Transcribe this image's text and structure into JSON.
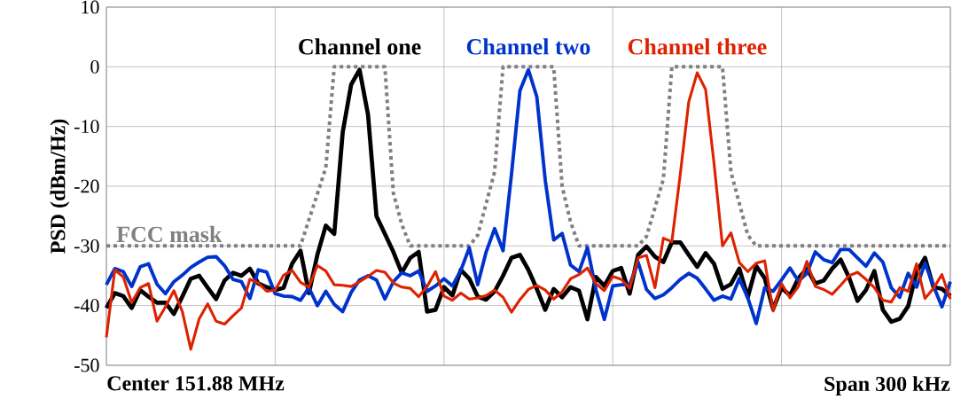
{
  "chart_data": {
    "type": "line",
    "ylabel": "PSD (dBm/Hz)",
    "ylim": [
      -50,
      10
    ],
    "yticks": [
      -50,
      -40,
      -30,
      -20,
      -10,
      0,
      10
    ],
    "tick_labels": "y",
    "grid": true,
    "annotations": [
      "Center 151.88 MHz",
      "Span 300 kHz"
    ],
    "categories": [
      null,
      null,
      null,
      null,
      null,
      null,
      null,
      null,
      null,
      null,
      null,
      null,
      null,
      null,
      null,
      null,
      null,
      null,
      null,
      null,
      null,
      null,
      null,
      null,
      null,
      null,
      null,
      null,
      null,
      null,
      null,
      null,
      null,
      null,
      null,
      null,
      null,
      null,
      null,
      null,
      null,
      null,
      null,
      null,
      null,
      null,
      null,
      null,
      null,
      null,
      null,
      null,
      null,
      null,
      null,
      null,
      null,
      null,
      null,
      null,
      null,
      null,
      null,
      null,
      null,
      null,
      null,
      null,
      null,
      null,
      null,
      null,
      null,
      null,
      null,
      null,
      null,
      null,
      null,
      null,
      null,
      null,
      null,
      null,
      null,
      null,
      null,
      null,
      null,
      null,
      null,
      null,
      null,
      null,
      null,
      null,
      null,
      null,
      null,
      null,
      null
    ],
    "series": [
      {
        "name": "FCC mask",
        "color": "#808080",
        "line_style": "dotted",
        "values": [
          -30,
          -30,
          -30,
          -30,
          -30,
          -30,
          -30,
          -30,
          -30,
          -30,
          -30,
          -30,
          -30,
          -30,
          -30,
          -30,
          -30,
          -30,
          -30,
          -30,
          -30,
          -30,
          -30,
          -30,
          -25.6,
          -21.3,
          -16.9,
          0,
          0,
          0,
          0,
          0,
          0,
          0,
          -21.1,
          -26.4,
          -30,
          -30,
          -30,
          -30,
          -30,
          -30,
          -30,
          -30,
          -28.2,
          -22.9,
          -17.6,
          0,
          0,
          0,
          0,
          0,
          0,
          0,
          -20,
          -26,
          -30,
          -30,
          -30,
          -30,
          -30,
          -30,
          -30,
          -30,
          -28.4,
          -23.6,
          -18.8,
          0,
          0,
          0,
          0,
          0,
          0,
          0,
          -17.6,
          -22.9,
          -28.2,
          -30,
          -30,
          -30,
          -30,
          -30,
          -30,
          -30,
          -30,
          -30,
          -30,
          -30,
          -30,
          -30,
          -30,
          -30,
          -30,
          -30,
          -30,
          -30,
          -30,
          -30,
          -30,
          -30,
          -30
        ]
      },
      {
        "name": "Channel one",
        "color": "#000000",
        "values": [
          -40.4,
          -37.9,
          -38.4,
          -40.4,
          -37.4,
          -38.5,
          -39.5,
          -39.5,
          -41.4,
          -38.5,
          -35.5,
          -35,
          -37,
          -38.9,
          -35.8,
          -34.5,
          -35,
          -33.8,
          -36.3,
          -36.9,
          -37.4,
          -37,
          -33,
          -30.8,
          -37.9,
          -31.5,
          -26.6,
          -28,
          -11,
          -3,
          -0.5,
          -8,
          -25,
          -28,
          -31,
          -34.5,
          -32,
          -31,
          -41,
          -40.7,
          -36.9,
          -38.3,
          -34,
          -35.5,
          -38.5,
          -39,
          -37.6,
          -35,
          -32,
          -31.5,
          -34,
          -37.2,
          -40.7,
          -37.2,
          -38.6,
          -36.9,
          -37.5,
          -42.3,
          -35.2,
          -36.7,
          -34.2,
          -33.7,
          -38,
          -31.5,
          -30.1,
          -31.8,
          -32.7,
          -29.4,
          -29.4,
          -31.5,
          -33.5,
          -31.2,
          -33,
          -37.2,
          -36.4,
          -33.8,
          -38.6,
          -33.4,
          -35.4,
          -40.6,
          -37,
          -38.3,
          -35.4,
          -33.8,
          -36.3,
          -35.8,
          -33.8,
          -32.3,
          -35.3,
          -39.2,
          -37.4,
          -34.2,
          -40.7,
          -42.7,
          -42.2,
          -40.1,
          -34.4,
          -32,
          -36.9,
          -37.2,
          -38.4
        ]
      },
      {
        "name": "Channel two",
        "color": "#0033cc",
        "values": [
          -36.5,
          -33.8,
          -34.3,
          -36.8,
          -33.5,
          -33,
          -36.4,
          -38,
          -36,
          -34.9,
          -33.6,
          -32.7,
          -31.9,
          -31.8,
          -33.3,
          -35.6,
          -36,
          -38.8,
          -34,
          -34.4,
          -38,
          -38.4,
          -38.5,
          -39.1,
          -37,
          -40,
          -37.6,
          -39.8,
          -41,
          -37.8,
          -35.7,
          -35,
          -35.7,
          -38.9,
          -36,
          -34.5,
          -35,
          -34.2,
          -37.6,
          -36.7,
          -35.5,
          -36.7,
          -34.1,
          -30.3,
          -36.5,
          -31,
          -27.1,
          -30.8,
          -18,
          -4,
          -0.5,
          -5,
          -19,
          -29,
          -27.9,
          -33.2,
          -34.3,
          -30.3,
          -37.3,
          -42.3,
          -36.7,
          -36.5,
          -36.5,
          -32.7,
          -37.3,
          -38.8,
          -38.2,
          -37,
          -35.6,
          -34.6,
          -35.4,
          -37.2,
          -39.1,
          -38.4,
          -38.9,
          -35.5,
          -38.7,
          -43,
          -37,
          -37.6,
          -35.7,
          -33.7,
          -35.9,
          -34.6,
          -31,
          -32.3,
          -32.8,
          -30.6,
          -30.6,
          -32,
          -33.4,
          -31.2,
          -32.7,
          -37,
          -38.6,
          -34.6,
          -36.9,
          -32.9,
          -36.7,
          -40.2,
          -36
        ]
      },
      {
        "name": "Channel three",
        "color": "#dd2200",
        "values": [
          -45.3,
          -34,
          -35.2,
          -39.5,
          -37,
          -36.3,
          -42.6,
          -40.2,
          -37.5,
          -41,
          -47.3,
          -42.2,
          -39.7,
          -42.6,
          -43.1,
          -41.7,
          -40.4,
          -35.6,
          -36.2,
          -37.6,
          -37.4,
          -34.9,
          -34.1,
          -36.1,
          -36.9,
          -33.3,
          -34.2,
          -36.5,
          -36.6,
          -36.8,
          -36,
          -35.1,
          -34.1,
          -34.4,
          -36.2,
          -36.9,
          -37.1,
          -38.5,
          -36.8,
          -34.3,
          -38.4,
          -39.1,
          -37.9,
          -38.9,
          -38.7,
          -38.3,
          -37.4,
          -38.6,
          -41.1,
          -39,
          -37.3,
          -36.6,
          -37.4,
          -38.9,
          -37.7,
          -35.5,
          -34.8,
          -33.7,
          -36.3,
          -37.5,
          -35.1,
          -35.6,
          -37.1,
          -32,
          -31.6,
          -37,
          -28.7,
          -29.3,
          -18,
          -5.9,
          -1,
          -3.8,
          -16.2,
          -30,
          -27.8,
          -32.8,
          -34.3,
          -32.9,
          -32.5,
          -40.9,
          -36.3,
          -38.7,
          -36.8,
          -32.6,
          -36.8,
          -37.3,
          -38.1,
          -36.6,
          -35,
          -34.4,
          -35.6,
          -37,
          -39.1,
          -39.4,
          -37,
          -37.6,
          -33,
          -38.8,
          -37.1,
          -34.8,
          -38.9
        ]
      }
    ]
  }
}
